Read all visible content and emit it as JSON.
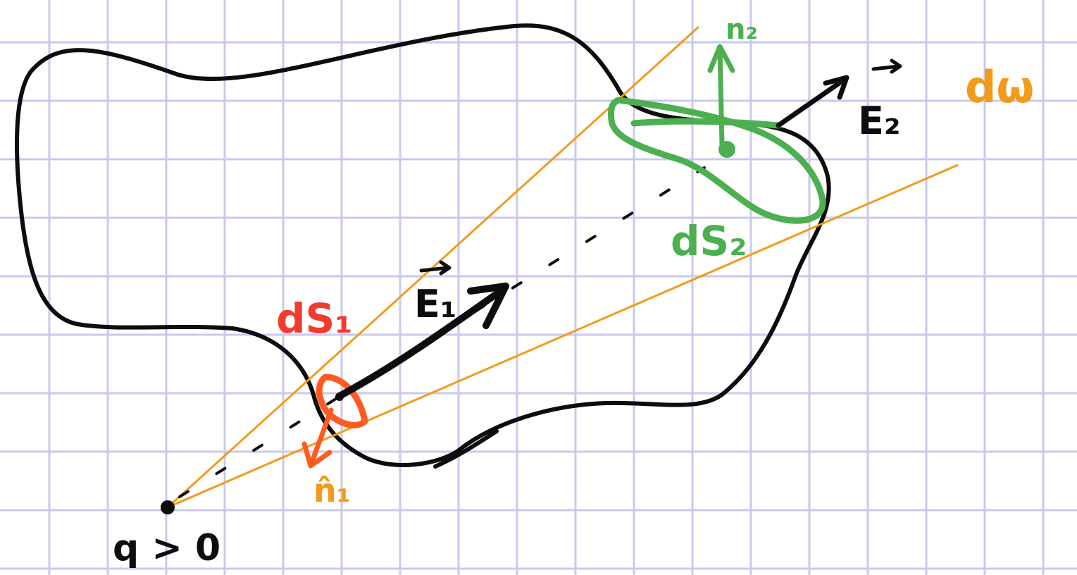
{
  "colors": {
    "grid": "#c9c9ee",
    "outline": "#0d0d0d",
    "cone": "#f39a1b",
    "surface_1": "#ff5a1f",
    "surface_1_label": "#f23b2e",
    "surface_2": "#4caf50"
  },
  "labels": {
    "charge": "q > 0",
    "ds1": "dS₁",
    "ds2": "dS₂",
    "e1": "E₁",
    "e2": "E₂",
    "n1": "n̂₁",
    "n2": "n₂",
    "solid_angle": "dω"
  }
}
